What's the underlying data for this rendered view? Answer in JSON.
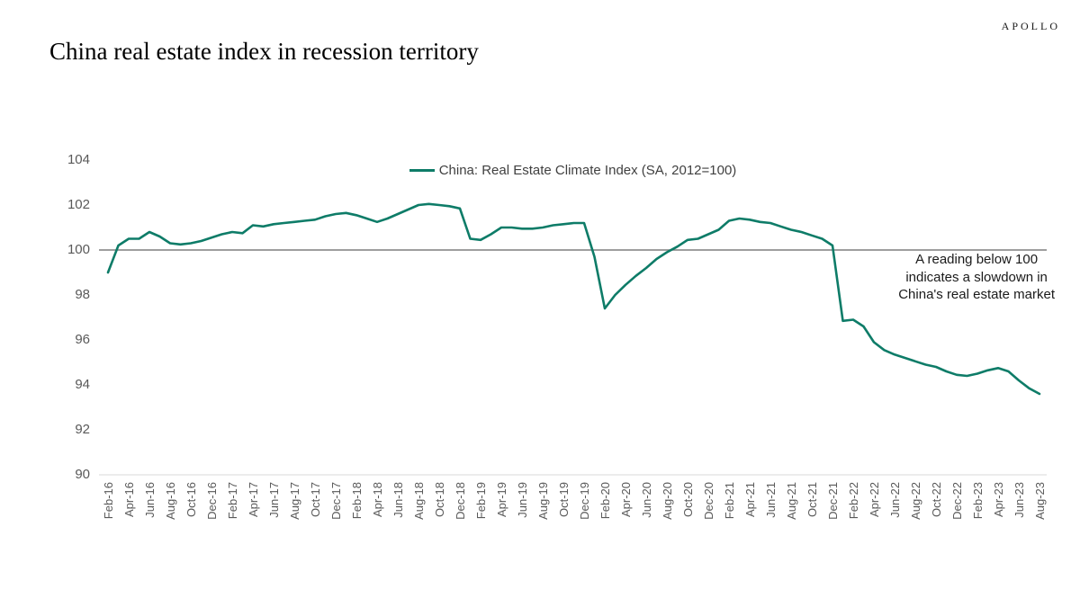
{
  "page": {
    "brand": "APOLLO",
    "title": "China real estate index in recession territory"
  },
  "colors": {
    "series_line": "#0e7c68",
    "reference_line": "#7f7f7f",
    "axis_text": "#595959",
    "axis_line": "#d9d9d9",
    "annotation_text": "#1a1a1a"
  },
  "chart_data": {
    "type": "line",
    "title": "China real estate index in recession territory",
    "legend_position": "top-center",
    "grid": false,
    "ylim": [
      90,
      104.4
    ],
    "y_ticks": [
      104,
      102,
      100,
      98,
      96,
      94,
      92,
      90
    ],
    "x_tick_step": 2,
    "reference_line": {
      "value": 100,
      "color": "#7f7f7f"
    },
    "annotation": {
      "line1": "A reading below 100",
      "line2": "indicates a slowdown in",
      "line3": "China's real estate market"
    },
    "x": [
      "Feb-16",
      "Mar-16",
      "Apr-16",
      "May-16",
      "Jun-16",
      "Jul-16",
      "Aug-16",
      "Sep-16",
      "Oct-16",
      "Nov-16",
      "Dec-16",
      "Jan-17",
      "Feb-17",
      "Mar-17",
      "Apr-17",
      "May-17",
      "Jun-17",
      "Jul-17",
      "Aug-17",
      "Sep-17",
      "Oct-17",
      "Nov-17",
      "Dec-17",
      "Jan-18",
      "Feb-18",
      "Mar-18",
      "Apr-18",
      "May-18",
      "Jun-18",
      "Jul-18",
      "Aug-18",
      "Sep-18",
      "Oct-18",
      "Nov-18",
      "Dec-18",
      "Jan-19",
      "Feb-19",
      "Mar-19",
      "Apr-19",
      "May-19",
      "Jun-19",
      "Jul-19",
      "Aug-19",
      "Sep-19",
      "Oct-19",
      "Nov-19",
      "Dec-19",
      "Jan-20",
      "Feb-20",
      "Mar-20",
      "Apr-20",
      "May-20",
      "Jun-20",
      "Jul-20",
      "Aug-20",
      "Sep-20",
      "Oct-20",
      "Nov-20",
      "Dec-20",
      "Jan-21",
      "Feb-21",
      "Mar-21",
      "Apr-21",
      "May-21",
      "Jun-21",
      "Jul-21",
      "Aug-21",
      "Sep-21",
      "Oct-21",
      "Nov-21",
      "Dec-21",
      "Jan-22",
      "Feb-22",
      "Mar-22",
      "Apr-22",
      "May-22",
      "Jun-22",
      "Jul-22",
      "Aug-22",
      "Sep-22",
      "Oct-22",
      "Nov-22",
      "Dec-22",
      "Jan-23",
      "Feb-23",
      "Mar-23",
      "Apr-23",
      "May-23",
      "Jun-23",
      "Jul-23",
      "Aug-23"
    ],
    "series": [
      {
        "name": "China: Real Estate Climate Index (SA, 2012=100)",
        "color": "#0e7c68",
        "values": [
          99.0,
          100.2,
          100.5,
          100.5,
          100.8,
          100.6,
          100.3,
          100.25,
          100.3,
          100.4,
          100.55,
          100.7,
          100.8,
          100.75,
          101.1,
          101.05,
          101.15,
          101.2,
          101.25,
          101.3,
          101.35,
          101.5,
          101.6,
          101.65,
          101.55,
          101.4,
          101.25,
          101.4,
          101.6,
          101.8,
          102.0,
          102.05,
          102.0,
          101.95,
          101.85,
          100.5,
          100.45,
          100.7,
          101.0,
          101.0,
          100.95,
          100.95,
          101.0,
          101.1,
          101.15,
          101.2,
          101.2,
          99.7,
          97.4,
          98.0,
          98.45,
          98.85,
          99.2,
          99.6,
          99.9,
          100.15,
          100.45,
          100.5,
          100.7,
          100.9,
          101.3,
          101.4,
          101.35,
          101.25,
          101.2,
          101.05,
          100.9,
          100.8,
          100.65,
          100.5,
          100.2,
          96.85,
          96.9,
          96.6,
          95.9,
          95.55,
          95.35,
          95.2,
          95.05,
          94.9,
          94.8,
          94.6,
          94.45,
          94.4,
          94.5,
          94.65,
          94.75,
          94.6,
          94.2,
          93.85,
          93.6
        ]
      }
    ]
  }
}
